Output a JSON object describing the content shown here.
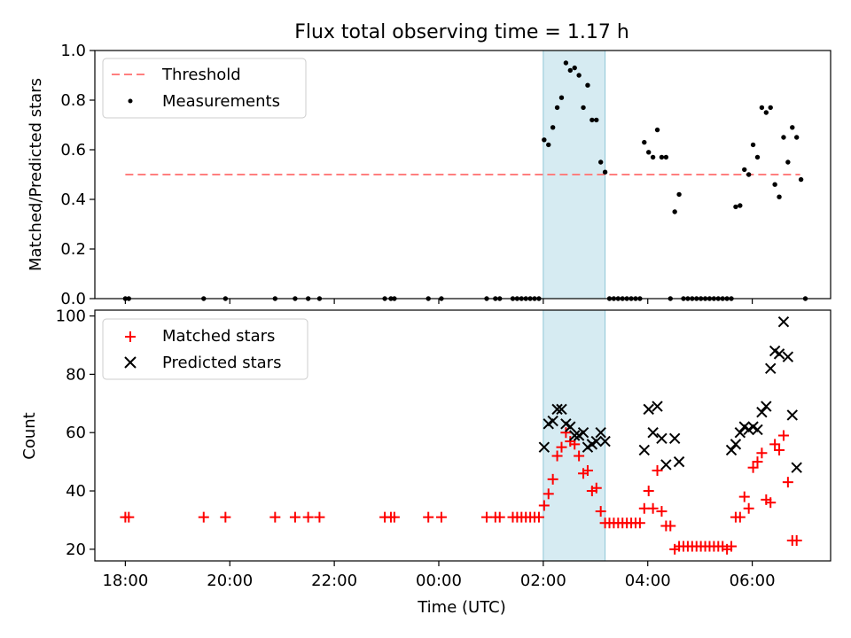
{
  "figure": {
    "title": "Flux total observing time = 1.17 h",
    "xlabel": "Time (UTC)"
  },
  "chart_data": [
    {
      "type": "scatter",
      "panel": "top",
      "ylabel": "Matched/Predicted stars",
      "xlim": [
        "17:25",
        "07:30"
      ],
      "ylim": [
        0,
        1.0
      ],
      "yticks": [
        "0.0",
        "0.2",
        "0.4",
        "0.6",
        "0.8",
        "1.0"
      ],
      "highlight_span": [
        "02:00",
        "03:11"
      ],
      "legend_position": "top-left",
      "threshold": {
        "name": "Threshold",
        "value": 0.5,
        "x_range": [
          "18:00",
          "06:55"
        ],
        "color": "#ff7f7f"
      },
      "series": [
        {
          "name": "Measurements",
          "color": "#000000",
          "points": [
            [
              "18:00",
              0
            ],
            [
              "18:04",
              0
            ],
            [
              "19:30",
              0
            ],
            [
              "19:55",
              0
            ],
            [
              "20:52",
              0
            ],
            [
              "21:15",
              0
            ],
            [
              "21:30",
              0
            ],
            [
              "21:43",
              0
            ],
            [
              "22:58",
              0
            ],
            [
              "23:05",
              0
            ],
            [
              "23:09",
              0
            ],
            [
              "23:48",
              0
            ],
            [
              "00:03",
              0
            ],
            [
              "00:55",
              0
            ],
            [
              "01:05",
              0
            ],
            [
              "01:10",
              0
            ],
            [
              "01:25",
              0
            ],
            [
              "01:30",
              0
            ],
            [
              "01:35",
              0
            ],
            [
              "01:40",
              0
            ],
            [
              "01:45",
              0
            ],
            [
              "01:50",
              0
            ],
            [
              "01:55",
              0
            ],
            [
              "02:01",
              0.64
            ],
            [
              "02:06",
              0.62
            ],
            [
              "02:11",
              0.69
            ],
            [
              "02:16",
              0.77
            ],
            [
              "02:21",
              0.81
            ],
            [
              "02:26",
              0.95
            ],
            [
              "02:31",
              0.92
            ],
            [
              "02:36",
              0.93
            ],
            [
              "02:41",
              0.9
            ],
            [
              "02:46",
              0.77
            ],
            [
              "02:51",
              0.86
            ],
            [
              "02:56",
              0.72
            ],
            [
              "03:01",
              0.72
            ],
            [
              "03:06",
              0.55
            ],
            [
              "03:11",
              0.51
            ],
            [
              "03:16",
              0
            ],
            [
              "03:21",
              0
            ],
            [
              "03:26",
              0
            ],
            [
              "03:31",
              0
            ],
            [
              "03:36",
              0
            ],
            [
              "03:41",
              0
            ],
            [
              "03:46",
              0
            ],
            [
              "03:51",
              0
            ],
            [
              "03:56",
              0.63
            ],
            [
              "04:01",
              0.59
            ],
            [
              "04:06",
              0.57
            ],
            [
              "04:11",
              0.68
            ],
            [
              "04:16",
              0.57
            ],
            [
              "04:21",
              0.57
            ],
            [
              "04:26",
              0
            ],
            [
              "04:31",
              0.35
            ],
            [
              "04:36",
              0.42
            ],
            [
              "04:41",
              0
            ],
            [
              "04:46",
              0
            ],
            [
              "04:51",
              0
            ],
            [
              "04:56",
              0
            ],
            [
              "05:01",
              0
            ],
            [
              "05:06",
              0
            ],
            [
              "05:11",
              0
            ],
            [
              "05:16",
              0
            ],
            [
              "05:21",
              0
            ],
            [
              "05:26",
              0
            ],
            [
              "05:31",
              0
            ],
            [
              "05:36",
              0
            ],
            [
              "05:41",
              0.37
            ],
            [
              "05:46",
              0.375
            ],
            [
              "05:51",
              0.52
            ],
            [
              "05:56",
              0.5
            ],
            [
              "06:01",
              0.62
            ],
            [
              "06:06",
              0.57
            ],
            [
              "06:11",
              0.77
            ],
            [
              "06:16",
              0.75
            ],
            [
              "06:21",
              0.77
            ],
            [
              "06:26",
              0.46
            ],
            [
              "06:31",
              0.41
            ],
            [
              "06:36",
              0.65
            ],
            [
              "06:41",
              0.55
            ],
            [
              "06:46",
              0.69
            ],
            [
              "06:51",
              0.65
            ],
            [
              "06:56",
              0.48
            ],
            [
              "07:01",
              0
            ]
          ]
        }
      ]
    },
    {
      "type": "scatter",
      "panel": "bottom",
      "ylabel": "Count",
      "xlabel": "Time (UTC)",
      "xlim": [
        "17:25",
        "07:30"
      ],
      "ylim": [
        16,
        102
      ],
      "yticks": [
        "20",
        "40",
        "60",
        "80",
        "100"
      ],
      "xticks": [
        "18:00",
        "20:00",
        "22:00",
        "00:00",
        "02:00",
        "04:00",
        "06:00"
      ],
      "highlight_span": [
        "02:00",
        "03:11"
      ],
      "legend_position": "top-left",
      "series": [
        {
          "name": "Matched stars",
          "marker": "plus",
          "color": "#ff0000",
          "points": [
            [
              "18:00",
              31
            ],
            [
              "18:04",
              31
            ],
            [
              "19:30",
              31
            ],
            [
              "19:55",
              31
            ],
            [
              "20:52",
              31
            ],
            [
              "21:15",
              31
            ],
            [
              "21:30",
              31
            ],
            [
              "21:43",
              31
            ],
            [
              "22:58",
              31
            ],
            [
              "23:05",
              31
            ],
            [
              "23:09",
              31
            ],
            [
              "23:48",
              31
            ],
            [
              "00:03",
              31
            ],
            [
              "00:55",
              31
            ],
            [
              "01:05",
              31
            ],
            [
              "01:10",
              31
            ],
            [
              "01:25",
              31
            ],
            [
              "01:30",
              31
            ],
            [
              "01:35",
              31
            ],
            [
              "01:40",
              31
            ],
            [
              "01:45",
              31
            ],
            [
              "01:50",
              31
            ],
            [
              "01:55",
              31
            ],
            [
              "02:01",
              35
            ],
            [
              "02:06",
              39
            ],
            [
              "02:11",
              44
            ],
            [
              "02:16",
              52
            ],
            [
              "02:21",
              55
            ],
            [
              "02:26",
              60
            ],
            [
              "02:31",
              57
            ],
            [
              "02:36",
              56
            ],
            [
              "02:41",
              52
            ],
            [
              "02:46",
              46
            ],
            [
              "02:51",
              47
            ],
            [
              "02:56",
              40
            ],
            [
              "03:01",
              41
            ],
            [
              "03:06",
              33
            ],
            [
              "03:11",
              29
            ],
            [
              "03:16",
              29
            ],
            [
              "03:21",
              29
            ],
            [
              "03:26",
              29
            ],
            [
              "03:31",
              29
            ],
            [
              "03:36",
              29
            ],
            [
              "03:41",
              29
            ],
            [
              "03:46",
              29
            ],
            [
              "03:51",
              29
            ],
            [
              "03:56",
              34
            ],
            [
              "04:01",
              40
            ],
            [
              "04:06",
              34
            ],
            [
              "04:11",
              47
            ],
            [
              "04:16",
              33
            ],
            [
              "04:21",
              28
            ],
            [
              "04:26",
              28
            ],
            [
              "04:31",
              20
            ],
            [
              "04:36",
              21
            ],
            [
              "04:41",
              21
            ],
            [
              "04:46",
              21
            ],
            [
              "04:51",
              21
            ],
            [
              "04:56",
              21
            ],
            [
              "05:01",
              21
            ],
            [
              "05:06",
              21
            ],
            [
              "05:11",
              21
            ],
            [
              "05:16",
              21
            ],
            [
              "05:21",
              21
            ],
            [
              "05:26",
              21
            ],
            [
              "05:31",
              20
            ],
            [
              "05:36",
              21
            ],
            [
              "05:41",
              31
            ],
            [
              "05:46",
              31
            ],
            [
              "05:51",
              38
            ],
            [
              "05:56",
              34
            ],
            [
              "06:01",
              48
            ],
            [
              "06:06",
              50
            ],
            [
              "06:11",
              53
            ],
            [
              "06:16",
              37
            ],
            [
              "06:21",
              36
            ],
            [
              "06:26",
              56
            ],
            [
              "06:31",
              54
            ],
            [
              "06:36",
              59
            ],
            [
              "06:41",
              43
            ],
            [
              "06:46",
              23
            ],
            [
              "06:51",
              23
            ]
          ]
        },
        {
          "name": "Predicted stars",
          "marker": "x",
          "color": "#000000",
          "points": [
            [
              "02:01",
              55
            ],
            [
              "02:06",
              63
            ],
            [
              "02:11",
              64
            ],
            [
              "02:16",
              68
            ],
            [
              "02:21",
              68
            ],
            [
              "02:26",
              63
            ],
            [
              "02:31",
              62
            ],
            [
              "02:36",
              59
            ],
            [
              "02:41",
              59
            ],
            [
              "02:46",
              60
            ],
            [
              "02:51",
              55
            ],
            [
              "02:56",
              56
            ],
            [
              "03:01",
              57
            ],
            [
              "03:06",
              60
            ],
            [
              "03:11",
              57
            ],
            [
              "03:56",
              54
            ],
            [
              "04:01",
              68
            ],
            [
              "04:06",
              60
            ],
            [
              "04:11",
              69
            ],
            [
              "04:16",
              58
            ],
            [
              "04:21",
              49
            ],
            [
              "04:31",
              58
            ],
            [
              "04:36",
              50
            ],
            [
              "05:36",
              54
            ],
            [
              "05:41",
              56
            ],
            [
              "05:46",
              60
            ],
            [
              "05:51",
              62
            ],
            [
              "05:56",
              61
            ],
            [
              "06:01",
              62
            ],
            [
              "06:06",
              61
            ],
            [
              "06:11",
              67
            ],
            [
              "06:16",
              69
            ],
            [
              "06:21",
              82
            ],
            [
              "06:26",
              88
            ],
            [
              "06:31",
              87
            ],
            [
              "06:36",
              98
            ],
            [
              "06:41",
              86
            ],
            [
              "06:46",
              66
            ],
            [
              "06:51",
              48
            ]
          ]
        }
      ]
    }
  ]
}
